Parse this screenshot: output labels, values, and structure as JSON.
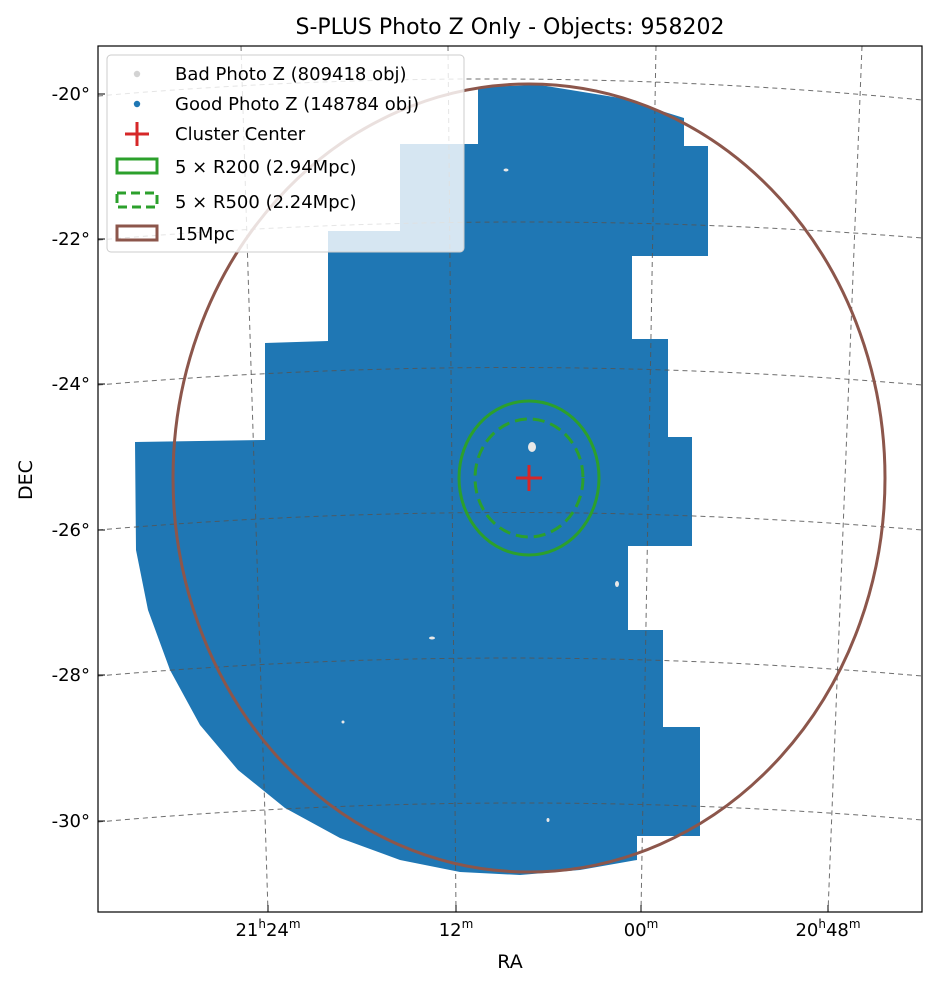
{
  "chart_data": {
    "type": "scatter",
    "title": "S-PLUS Photo Z Only - Objects: 958202",
    "xlabel": "RA",
    "ylabel": "DEC",
    "projection": "sky (RA/Dec, gnomonic-like)",
    "grid": true,
    "ra_ticks": [
      {
        "deg": 321.0,
        "h": "21",
        "m": "24"
      },
      {
        "deg": 318.0,
        "h": "",
        "m": "12"
      },
      {
        "deg": 315.0,
        "h": "",
        "m": "00"
      },
      {
        "deg": 312.0,
        "h": "20",
        "m": "48"
      }
    ],
    "dec_ticks": [
      {
        "deg": -20,
        "label": "-20°"
      },
      {
        "deg": -22,
        "label": "-22°"
      },
      {
        "deg": -24,
        "label": "-24°"
      },
      {
        "deg": -26,
        "label": "-26°"
      },
      {
        "deg": -28,
        "label": "-28°"
      },
      {
        "deg": -30,
        "label": "-30°"
      }
    ],
    "cluster_center": {
      "ra_deg": 317.0,
      "dec_deg": -25.3
    },
    "footprint_region": {
      "ra_range_deg": [
        311.5,
        322.8
      ],
      "dec_range_deg": [
        -30.7,
        -19.9
      ],
      "description": "S-PLUS tiles within 15 Mpc circle"
    },
    "series": [
      {
        "name": "Bad Photo Z",
        "count": 809418,
        "color": "#cfe1ee",
        "marker": "point"
      },
      {
        "name": "Good Photo Z",
        "count": 148784,
        "color": "#1f77b4",
        "marker": "point"
      }
    ],
    "circles": [
      {
        "name": "5 × R200",
        "radius_mpc": 2.94,
        "color": "#2ca02c",
        "style": "solid"
      },
      {
        "name": "5 × R500",
        "radius_mpc": 2.24,
        "color": "#2ca02c",
        "style": "dashed"
      },
      {
        "name": "15Mpc",
        "radius_mpc": 15,
        "color": "#8c564b",
        "style": "solid"
      }
    ],
    "legend": {
      "position": "upper-left",
      "entries": [
        {
          "label": "Bad Photo Z (809418 obj)",
          "kind": "dot",
          "color": "#d3d3d3"
        },
        {
          "label": "Good Photo Z (148784 obj)",
          "kind": "dot",
          "color": "#1f77b4"
        },
        {
          "label": "Cluster Center",
          "kind": "plus",
          "color": "#d62728"
        },
        {
          "label": "5 × R200 (2.94Mpc)",
          "kind": "box-solid",
          "color": "#2ca02c"
        },
        {
          "label": "5 × R500 (2.24Mpc)",
          "kind": "box-dashed",
          "color": "#2ca02c"
        },
        {
          "label": "15Mpc",
          "kind": "box-solid",
          "color": "#8c564b"
        }
      ]
    }
  }
}
